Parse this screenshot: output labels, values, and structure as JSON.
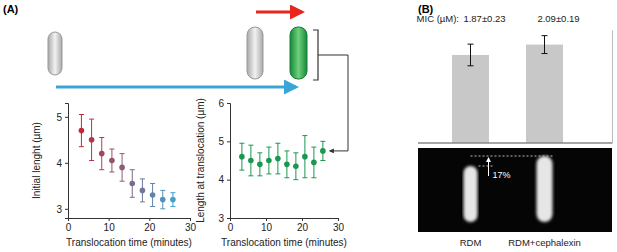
{
  "chart_data": [
    {
      "type": "scatter",
      "x_label": "Translocation time (minutes)",
      "y_label": "Initial lenght (µm)",
      "x": [
        3.3,
        5.8,
        8.3,
        10.8,
        13.3,
        15.8,
        18.3,
        20.8,
        23.3,
        25.8
      ],
      "values": [
        4.7,
        4.5,
        4.2,
        4.05,
        3.9,
        3.55,
        3.4,
        3.3,
        3.2,
        3.2
      ],
      "errors": [
        0.35,
        0.45,
        0.35,
        0.25,
        0.3,
        0.3,
        0.25,
        0.25,
        0.2,
        0.15
      ],
      "colors": [
        "#c0283c",
        "#b2354c",
        "#a5435b",
        "#97506b",
        "#8a5d7a",
        "#7c6b8a",
        "#6e789a",
        "#6185a9",
        "#5393b9",
        "#46a0c8"
      ],
      "marker": "circle",
      "xlim": [
        0,
        30
      ],
      "xticks": [
        0,
        10,
        20,
        30
      ],
      "ylim": [
        2.8,
        5.3
      ],
      "yticks": [
        3,
        4,
        5
      ]
    },
    {
      "type": "scatter",
      "x_label": "Translocation time (minutes)",
      "y_label": "Length at translocation (µm)",
      "x": [
        3.3,
        5.8,
        8.3,
        10.8,
        13.3,
        15.8,
        18.3,
        20.8,
        23.3,
        25.8
      ],
      "values": [
        4.6,
        4.5,
        4.4,
        4.5,
        4.55,
        4.4,
        4.35,
        4.6,
        4.45,
        4.75
      ],
      "errors": [
        0.35,
        0.4,
        0.3,
        0.35,
        0.4,
        0.35,
        0.35,
        0.55,
        0.4,
        0.25
      ],
      "color": "#1a9850",
      "marker": "circle",
      "xlim": [
        0,
        30
      ],
      "xticks": [
        0,
        10,
        20,
        30
      ],
      "ylim": [
        3,
        6
      ],
      "yticks": [
        3,
        4,
        5,
        6
      ]
    },
    {
      "type": "bar",
      "title": "MIC (µM):",
      "categories": [
        "RDM",
        "RDM+cephalexin"
      ],
      "values": [
        1.87,
        2.09
      ],
      "errors": [
        0.23,
        0.19
      ],
      "value_labels": [
        "1.87±0.23",
        "2.09±0.19"
      ],
      "data_labels": true,
      "tick_labels": "x",
      "color": "#c8c8c8",
      "ylim": [
        0,
        2.4
      ],
      "yticks": []
    }
  ],
  "figure": {
    "panel_labels": [
      "(A)",
      "(B)"
    ],
    "image_annotation": "17%"
  }
}
